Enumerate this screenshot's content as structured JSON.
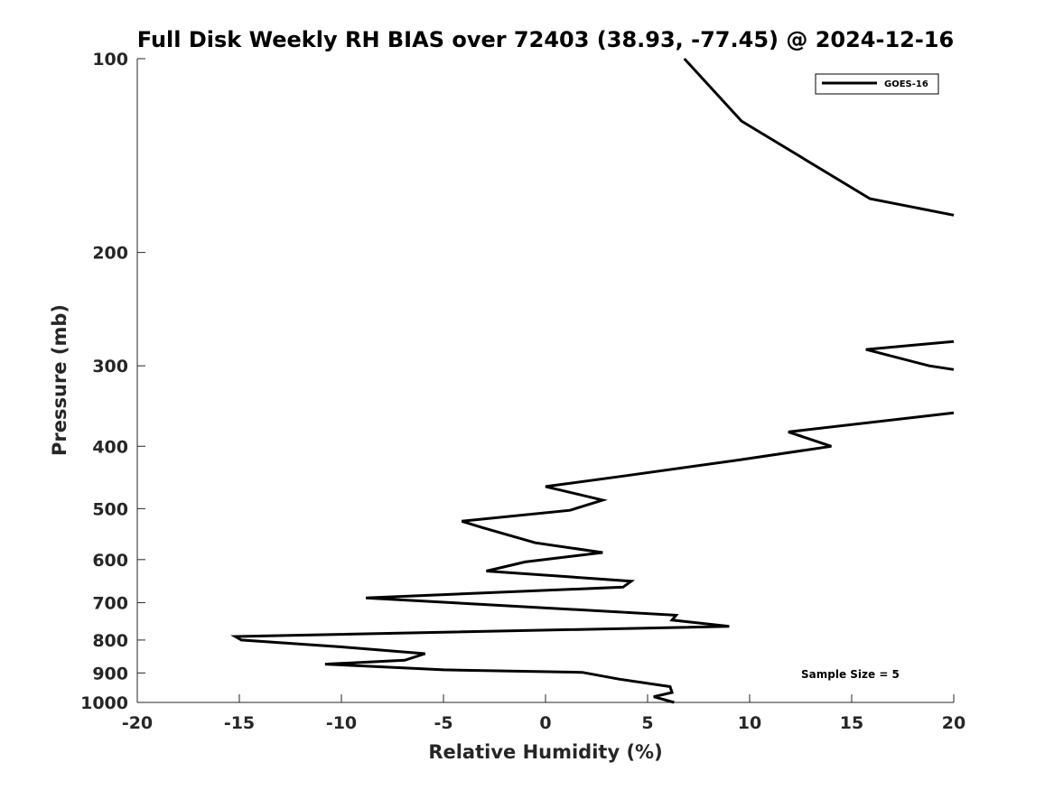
{
  "chart_data": {
    "type": "line",
    "title": "Full Disk Weekly RH BIAS over 72403 (38.93, -77.45) @ 2024-12-16",
    "xlabel": "Relative Humidity (%)",
    "ylabel": "Pressure (mb)",
    "xlim": [
      -20,
      20
    ],
    "ylim": [
      1000,
      100
    ],
    "y_scale": "log",
    "y_reversed": true,
    "x_ticks": [
      "-20",
      "-15",
      "-10",
      "-5",
      "0",
      "5",
      "10",
      "15",
      "20"
    ],
    "y_ticks": [
      "100",
      "200",
      "300",
      "400",
      "500",
      "600",
      "700",
      "800",
      "900",
      "1000"
    ],
    "grid": false,
    "legend_position": "top-right",
    "annotation": "Sample Size = 5",
    "series": [
      {
        "name": "GOES-16",
        "color": "#000000",
        "segments": [
          [
            [
              6.8,
              100
            ],
            [
              9.6,
              125
            ],
            [
              15.9,
              165
            ],
            [
              20,
              175
            ]
          ],
          [
            [
              20,
              275
            ],
            [
              15.7,
              283
            ],
            [
              18.8,
              300
            ],
            [
              20,
              304
            ]
          ],
          [
            [
              20,
              355
            ],
            [
              11.9,
              380
            ],
            [
              14.0,
              400
            ],
            [
              9.5,
              420
            ],
            [
              3.8,
              445
            ],
            [
              0,
              462
            ],
            [
              2.8,
              485
            ],
            [
              1.2,
              503
            ],
            [
              -4.1,
              523
            ],
            [
              -3.1,
              535
            ],
            [
              -0.5,
              565
            ],
            [
              2.8,
              585
            ],
            [
              -1.0,
              605
            ],
            [
              -2.9,
              625
            ],
            [
              4.2,
              648
            ],
            [
              3.8,
              662
            ],
            [
              -8.8,
              688
            ],
            [
              6.4,
              732
            ],
            [
              6.2,
              745
            ],
            [
              9.0,
              762
            ],
            [
              -15.2,
              790
            ],
            [
              -14.9,
              800
            ],
            [
              -10.0,
              820
            ],
            [
              -5.9,
              840
            ],
            [
              -6.9,
              860
            ],
            [
              -10.8,
              872
            ],
            [
              -5.0,
              890
            ],
            [
              1.8,
              898
            ],
            [
              3.6,
              920
            ],
            [
              6.1,
              945
            ],
            [
              6.2,
              965
            ],
            [
              5.3,
              980
            ],
            [
              6.3,
              1000
            ]
          ]
        ]
      }
    ]
  }
}
